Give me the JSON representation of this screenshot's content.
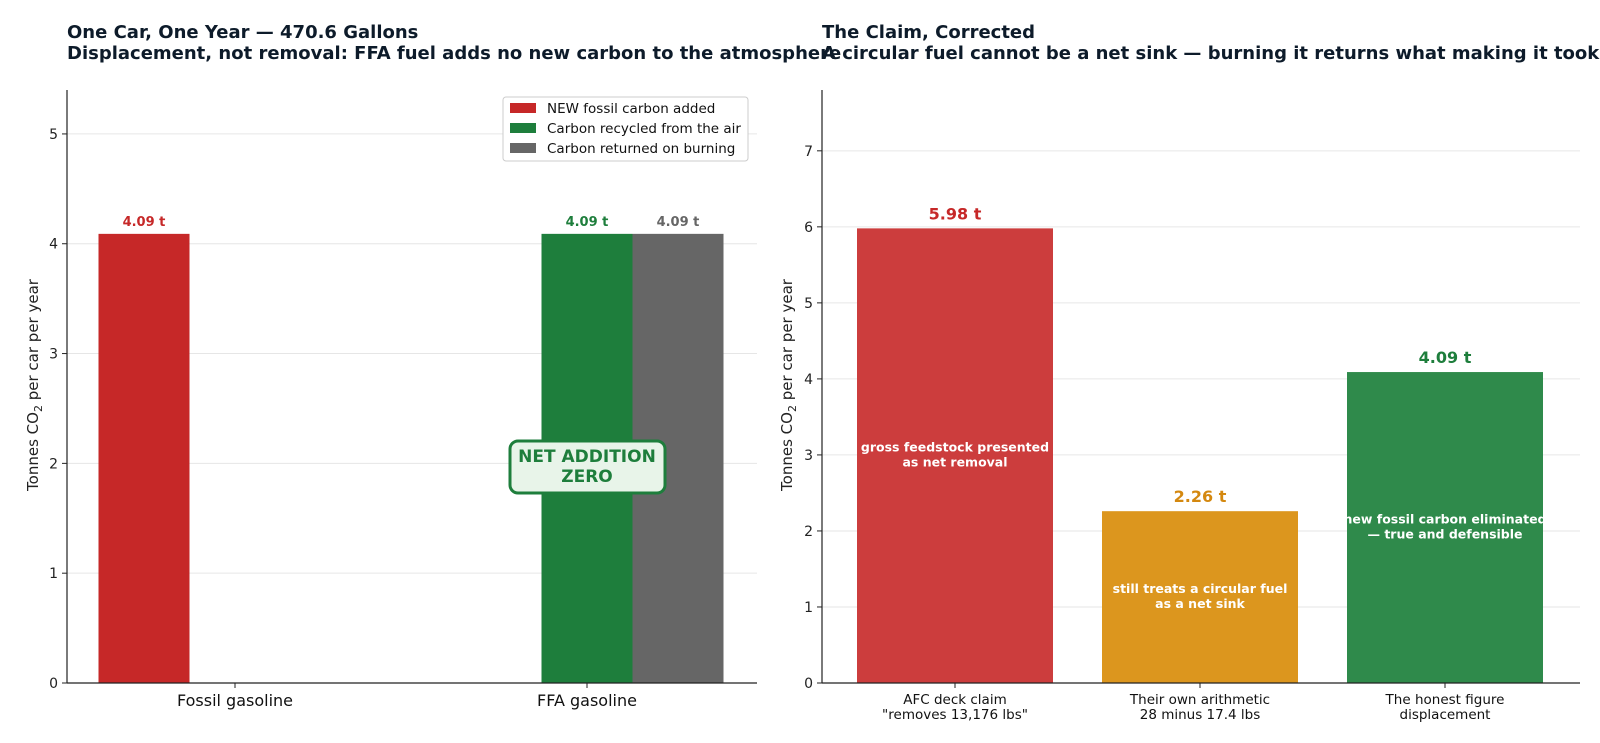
{
  "chart_data": [
    {
      "type": "bar",
      "title": "One Car, One Year — 470.6 Gallons",
      "subtitle": "Displacement, not removal: FFA fuel adds no new carbon to the atmosphere",
      "xlabel": "",
      "ylabel_main": "Tonnes CO",
      "ylabel_sub": "2",
      "ylabel_tail": " per car per year",
      "ylim": [
        0,
        5.4
      ],
      "yticks": [
        0,
        1,
        2,
        3,
        4,
        5
      ],
      "grid": "y",
      "legend_placement": "top-right",
      "categories": [
        "Fossil gasoline",
        "FFA gasoline"
      ],
      "series": [
        {
          "name": "NEW fossil carbon added",
          "color": "#c62828",
          "values": [
            4.09,
            null
          ],
          "labels": [
            "4.09 t",
            ""
          ]
        },
        {
          "name": "Carbon recycled from the air",
          "color": "#1e7e3c",
          "values": [
            null,
            4.09
          ],
          "labels": [
            "",
            "4.09 t"
          ]
        },
        {
          "name": "Carbon returned on burning",
          "color": "#666666",
          "values": [
            null,
            4.09
          ],
          "labels": [
            "",
            "4.09 t"
          ]
        }
      ],
      "annotation": {
        "line1": "NET ADDITION",
        "line2": "ZERO"
      }
    },
    {
      "type": "bar",
      "title": "The Claim, Corrected",
      "subtitle": "A circular fuel cannot be a net sink — burning it returns what making it took",
      "xlabel": "",
      "ylabel_main": "Tonnes CO",
      "ylabel_sub": "2",
      "ylabel_tail": " per car per year",
      "ylim": [
        0,
        7.8
      ],
      "yticks": [
        0,
        1,
        2,
        3,
        4,
        5,
        6,
        7
      ],
      "grid": "y",
      "bars": [
        {
          "cat_line1": "AFC deck claim",
          "cat_line2": "\"removes 13,176 lbs\"",
          "value": 5.98,
          "label": "5.98 t",
          "color": "#cc3d3d",
          "label_color": "#c62828",
          "note_line1": "gross feedstock presented",
          "note_line2": "as net removal"
        },
        {
          "cat_line1": "Their own arithmetic",
          "cat_line2": "28 minus 17.4 lbs",
          "value": 2.26,
          "label": "2.26 t",
          "color": "#dc961e",
          "label_color": "#d4880f",
          "note_line1": "still treats a circular fuel",
          "note_line2": "as a net sink"
        },
        {
          "cat_line1": "The honest figure",
          "cat_line2": "displacement",
          "value": 4.09,
          "label": "4.09 t",
          "color": "#2f8a4b",
          "label_color": "#1e7e3c",
          "note_line1": "new fossil carbon eliminated",
          "note_line2": "— true and defensible"
        }
      ]
    }
  ]
}
